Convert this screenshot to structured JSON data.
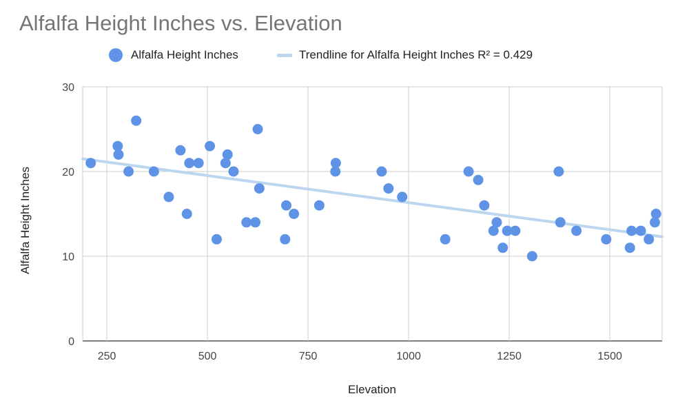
{
  "chart_data": {
    "type": "scatter",
    "title": "Alfalfa Height Inches vs. Elevation",
    "xlabel": "Elevation",
    "ylabel": "Alfalfa Height Inches",
    "xlim": [
      190,
      1630
    ],
    "ylim": [
      0,
      30
    ],
    "x_ticks": [
      "250",
      "500",
      "750",
      "1000",
      "1250",
      "1500"
    ],
    "y_ticks": [
      "0",
      "10",
      "20",
      "30"
    ],
    "grid": true,
    "legend_position": "top",
    "colors": {
      "points": "#5f93e6",
      "trendline": "#bcd6f0",
      "grid": "#cccccc"
    },
    "series": [
      {
        "name": "Alfalfa Height Inches",
        "points": [
          [
            210,
            21
          ],
          [
            277,
            23
          ],
          [
            279,
            22
          ],
          [
            304,
            20
          ],
          [
            323,
            26
          ],
          [
            367,
            20
          ],
          [
            404,
            17
          ],
          [
            433,
            22.5
          ],
          [
            449,
            15
          ],
          [
            455,
            21
          ],
          [
            478,
            21
          ],
          [
            506,
            23
          ],
          [
            523,
            12
          ],
          [
            545,
            21
          ],
          [
            550,
            22
          ],
          [
            565,
            20
          ],
          [
            597,
            14
          ],
          [
            619,
            14
          ],
          [
            625,
            25
          ],
          [
            629,
            18
          ],
          [
            693,
            12
          ],
          [
            696,
            16
          ],
          [
            715,
            15
          ],
          [
            778,
            16
          ],
          [
            818,
            20
          ],
          [
            819,
            21
          ],
          [
            933,
            20
          ],
          [
            950,
            18
          ],
          [
            984,
            17
          ],
          [
            1091,
            12
          ],
          [
            1149,
            20
          ],
          [
            1173,
            19
          ],
          [
            1188,
            16
          ],
          [
            1211,
            13
          ],
          [
            1219,
            14
          ],
          [
            1234,
            11
          ],
          [
            1245,
            13
          ],
          [
            1265,
            13
          ],
          [
            1307,
            10
          ],
          [
            1373,
            20
          ],
          [
            1377,
            14
          ],
          [
            1417,
            13
          ],
          [
            1491,
            12
          ],
          [
            1550,
            11
          ],
          [
            1554,
            13
          ],
          [
            1577,
            13
          ],
          [
            1597,
            12
          ],
          [
            1612,
            14
          ],
          [
            1615,
            15
          ]
        ]
      }
    ],
    "trendline": {
      "name": "Trendline for Alfalfa Height Inches R² = 0.429",
      "x": [
        190,
        1630
      ],
      "y": [
        21.5,
        12.3
      ]
    }
  }
}
